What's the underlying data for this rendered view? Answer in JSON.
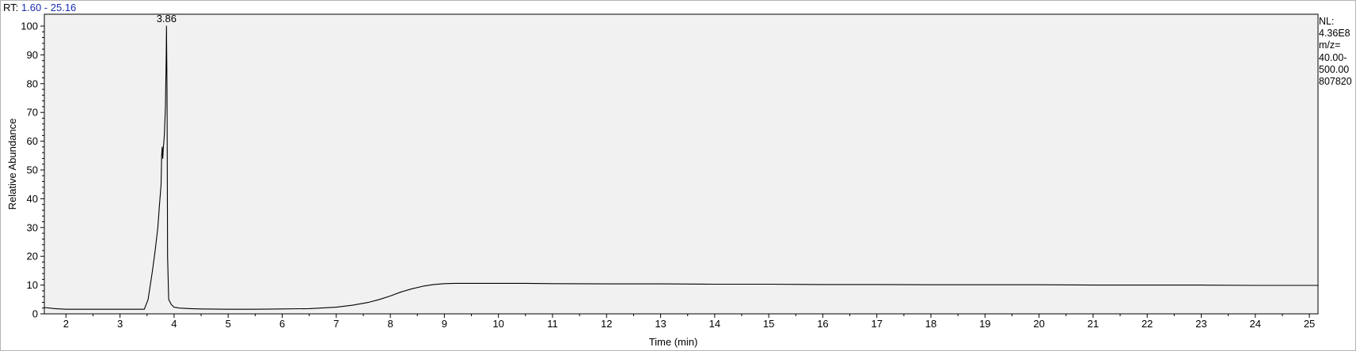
{
  "header": {
    "rt_label": "RT:",
    "rt_range": "1.60 - 25.16"
  },
  "info_panel": {
    "lines": [
      "NL:",
      "4.36E8",
      "m/z=",
      "40.00-",
      "500.00",
      "807820"
    ]
  },
  "colors": {
    "plot_background": "#f1f1f1",
    "trace": "#000000",
    "rt_range_text": "#1a2fb0",
    "frame": "#b4b4b4"
  },
  "chart_data": {
    "type": "line",
    "title": "",
    "xlabel": "Time (min)",
    "ylabel": "Relative Abundance",
    "xlim": [
      1.6,
      25.16
    ],
    "ylim": [
      0,
      100
    ],
    "x_ticks": [
      2,
      3,
      4,
      5,
      6,
      7,
      8,
      9,
      10,
      11,
      12,
      13,
      14,
      15,
      16,
      17,
      18,
      19,
      20,
      21,
      22,
      23,
      24,
      25
    ],
    "y_ticks": [
      0,
      10,
      20,
      30,
      40,
      50,
      60,
      70,
      80,
      90,
      100
    ],
    "grid": false,
    "annotations": [
      {
        "text": "3.86",
        "x": 3.86,
        "y": 100
      }
    ],
    "series": [
      {
        "x": [
          1.6,
          1.8,
          2.0,
          2.5,
          3.0,
          3.45,
          3.52,
          3.6,
          3.65,
          3.7,
          3.73,
          3.76,
          3.77,
          3.78,
          3.79,
          3.8,
          3.82,
          3.84,
          3.855,
          3.86,
          3.87,
          3.88,
          3.9,
          3.95,
          4.0,
          4.1,
          4.3,
          4.5,
          5.0,
          5.5,
          6.0,
          6.5,
          7.0,
          7.3,
          7.6,
          7.8,
          8.0,
          8.2,
          8.4,
          8.6,
          8.8,
          9.0,
          9.2,
          9.5,
          10.0,
          10.5,
          11.0,
          12.0,
          13.0,
          14.0,
          15.0,
          16.0,
          17.0,
          18.0,
          19.0,
          20.0,
          21.0,
          22.0,
          23.0,
          24.0,
          25.0,
          25.16
        ],
        "y": [
          2.2,
          1.8,
          1.6,
          1.6,
          1.6,
          1.6,
          5,
          15,
          22,
          30,
          38,
          45,
          55,
          58,
          54,
          57,
          62,
          72,
          90,
          100,
          78,
          20,
          5,
          3.2,
          2.3,
          2.0,
          1.8,
          1.7,
          1.6,
          1.6,
          1.7,
          1.8,
          2.3,
          3.0,
          4.0,
          5.0,
          6.2,
          7.6,
          8.7,
          9.6,
          10.2,
          10.5,
          10.6,
          10.6,
          10.6,
          10.6,
          10.5,
          10.4,
          10.4,
          10.3,
          10.3,
          10.2,
          10.2,
          10.1,
          10.1,
          10.1,
          10.0,
          10.0,
          10.0,
          9.9,
          9.9,
          9.9
        ]
      }
    ]
  }
}
